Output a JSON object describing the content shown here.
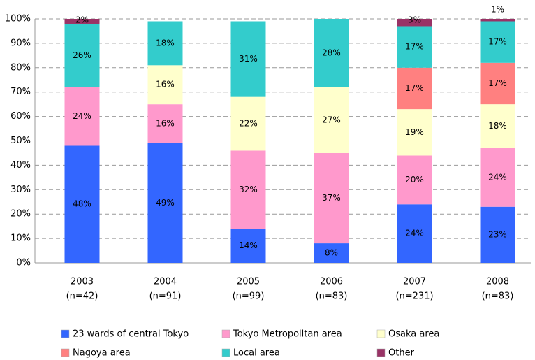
{
  "chart_data": {
    "type": "stacked_bar",
    "categories": [
      "2003",
      "2004",
      "2005",
      "2006",
      "2007",
      "2008"
    ],
    "category_notes": [
      "(n=42)",
      "(n=91)",
      "(n=99)",
      "(n=83)",
      "(n=231)",
      "(n=83)"
    ],
    "series": [
      {
        "name": "23 wards of central Tokyo",
        "color": "#3366ff",
        "values": [
          48,
          49,
          14,
          8,
          24,
          23
        ],
        "value_labels": [
          "48%",
          "49%",
          "14%",
          "8%",
          "24%",
          "23%"
        ]
      },
      {
        "name": "Tokyo Metropolitan area",
        "color": "#ff99cc",
        "values": [
          24,
          16,
          32,
          37,
          20,
          24
        ],
        "value_labels": [
          "24%",
          "16%",
          "32%",
          "37%",
          "20%",
          "24%"
        ]
      },
      {
        "name": "Osaka area",
        "color": "#ffffcc",
        "values": [
          0,
          16,
          22,
          27,
          19,
          18
        ],
        "value_labels": [
          null,
          "16%",
          "22%",
          "27%",
          "19%",
          "18%"
        ]
      },
      {
        "name": "Nagoya area",
        "color": "#ff8080",
        "values": [
          0,
          0,
          0,
          0,
          17,
          17
        ],
        "value_labels": [
          null,
          null,
          null,
          null,
          "17%",
          "17%"
        ]
      },
      {
        "name": "Local area",
        "color": "#33cccc",
        "values": [
          26,
          18,
          31,
          28,
          17,
          17
        ],
        "value_labels": [
          "26%",
          "18%",
          "31%",
          "28%",
          "17%",
          "17%"
        ]
      },
      {
        "name": "Other",
        "color": "#993366",
        "values": [
          2,
          0,
          0,
          0,
          3,
          1
        ],
        "value_labels": [
          "2%",
          null,
          null,
          null,
          "3%",
          "1%"
        ]
      }
    ],
    "ylim": [
      0,
      100
    ],
    "yticks": [
      {
        "value": 0,
        "label": "0%"
      },
      {
        "value": 10,
        "label": "10%"
      },
      {
        "value": 20,
        "label": "20%"
      },
      {
        "value": 30,
        "label": "30%"
      },
      {
        "value": 40,
        "label": "40%"
      },
      {
        "value": 50,
        "label": "50%"
      },
      {
        "value": 60,
        "label": "60%"
      },
      {
        "value": 70,
        "label": "70%"
      },
      {
        "value": 80,
        "label": "80%"
      },
      {
        "value": 90,
        "label": "90%"
      },
      {
        "value": 100,
        "label": "100%"
      }
    ],
    "grid": true
  }
}
